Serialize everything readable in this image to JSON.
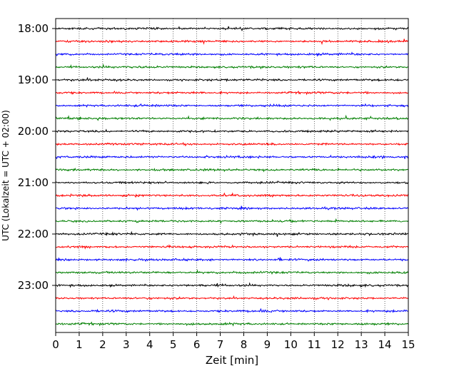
{
  "chart_data": {
    "type": "line",
    "title": "",
    "xlabel": "Zeit  [min]",
    "ylabel": "UTC (Lokalzeit = UTC + 02:00)",
    "xlim": [
      0,
      15
    ],
    "x_ticks": [
      "0",
      "1",
      "2",
      "3",
      "4",
      "5",
      "6",
      "7",
      "8",
      "9",
      "10",
      "11",
      "12",
      "13",
      "14",
      "15"
    ],
    "y_ticks": [
      "18:00",
      "19:00",
      "20:00",
      "21:00",
      "22:00",
      "23:00"
    ],
    "grid": "vertical dotted",
    "trace_interval_min": 15,
    "colors": [
      "#000000",
      "#ff0000",
      "#0000ff",
      "#007f00"
    ],
    "series": [
      {
        "start": "18:00",
        "color": "#000000"
      },
      {
        "start": "18:15",
        "color": "#ff0000"
      },
      {
        "start": "18:30",
        "color": "#0000ff"
      },
      {
        "start": "18:45",
        "color": "#007f00"
      },
      {
        "start": "19:00",
        "color": "#000000"
      },
      {
        "start": "19:15",
        "color": "#ff0000"
      },
      {
        "start": "19:30",
        "color": "#0000ff"
      },
      {
        "start": "19:45",
        "color": "#007f00"
      },
      {
        "start": "20:00",
        "color": "#000000"
      },
      {
        "start": "20:15",
        "color": "#ff0000"
      },
      {
        "start": "20:30",
        "color": "#0000ff"
      },
      {
        "start": "20:45",
        "color": "#007f00"
      },
      {
        "start": "21:00",
        "color": "#000000"
      },
      {
        "start": "21:15",
        "color": "#ff0000"
      },
      {
        "start": "21:30",
        "color": "#0000ff"
      },
      {
        "start": "21:45",
        "color": "#007f00"
      },
      {
        "start": "22:00",
        "color": "#000000"
      },
      {
        "start": "22:15",
        "color": "#ff0000"
      },
      {
        "start": "22:30",
        "color": "#0000ff"
      },
      {
        "start": "22:45",
        "color": "#007f00"
      },
      {
        "start": "23:00",
        "color": "#000000"
      },
      {
        "start": "23:15",
        "color": "#ff0000"
      },
      {
        "start": "23:30",
        "color": "#0000ff"
      },
      {
        "start": "23:45",
        "color": "#007f00"
      }
    ]
  }
}
